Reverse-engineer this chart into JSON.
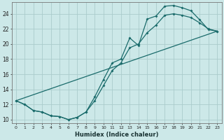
{
  "xlabel": "Humidex (Indice chaleur)",
  "bg_color": "#cce8e8",
  "grid_color": "#aacccc",
  "line_color": "#1a6b6b",
  "xlim": [
    -0.5,
    23.5
  ],
  "ylim": [
    9.5,
    25.5
  ],
  "xticks": [
    0,
    1,
    2,
    3,
    4,
    5,
    6,
    7,
    8,
    9,
    10,
    11,
    12,
    13,
    14,
    15,
    16,
    17,
    18,
    19,
    20,
    21,
    22,
    23
  ],
  "yticks": [
    10,
    12,
    14,
    16,
    18,
    20,
    22,
    24
  ],
  "curve1_x": [
    0,
    1,
    2,
    3,
    4,
    5,
    6,
    7,
    8,
    9,
    10,
    11,
    12,
    13,
    14,
    15,
    16,
    17,
    18,
    19,
    20,
    21,
    22,
    23
  ],
  "curve1_y": [
    12.5,
    12.0,
    11.2,
    11.0,
    10.5,
    10.4,
    10.0,
    10.3,
    11.0,
    13.0,
    15.3,
    17.5,
    18.0,
    20.8,
    19.8,
    23.3,
    23.7,
    25.0,
    25.1,
    24.8,
    24.4,
    23.2,
    21.9,
    21.7
  ],
  "curve2_x": [
    0,
    1,
    2,
    3,
    4,
    5,
    6,
    7,
    8,
    9,
    10,
    11,
    12,
    13,
    14,
    15,
    16,
    17,
    18,
    19,
    20,
    21,
    22,
    23
  ],
  "curve2_y": [
    12.5,
    12.0,
    11.2,
    11.0,
    10.5,
    10.4,
    10.0,
    10.3,
    11.0,
    12.5,
    14.5,
    16.5,
    17.5,
    19.5,
    20.0,
    21.5,
    22.5,
    23.8,
    24.0,
    23.8,
    23.5,
    22.8,
    22.0,
    21.7
  ],
  "line3_x": [
    0,
    23
  ],
  "line3_y": [
    12.5,
    21.7
  ]
}
